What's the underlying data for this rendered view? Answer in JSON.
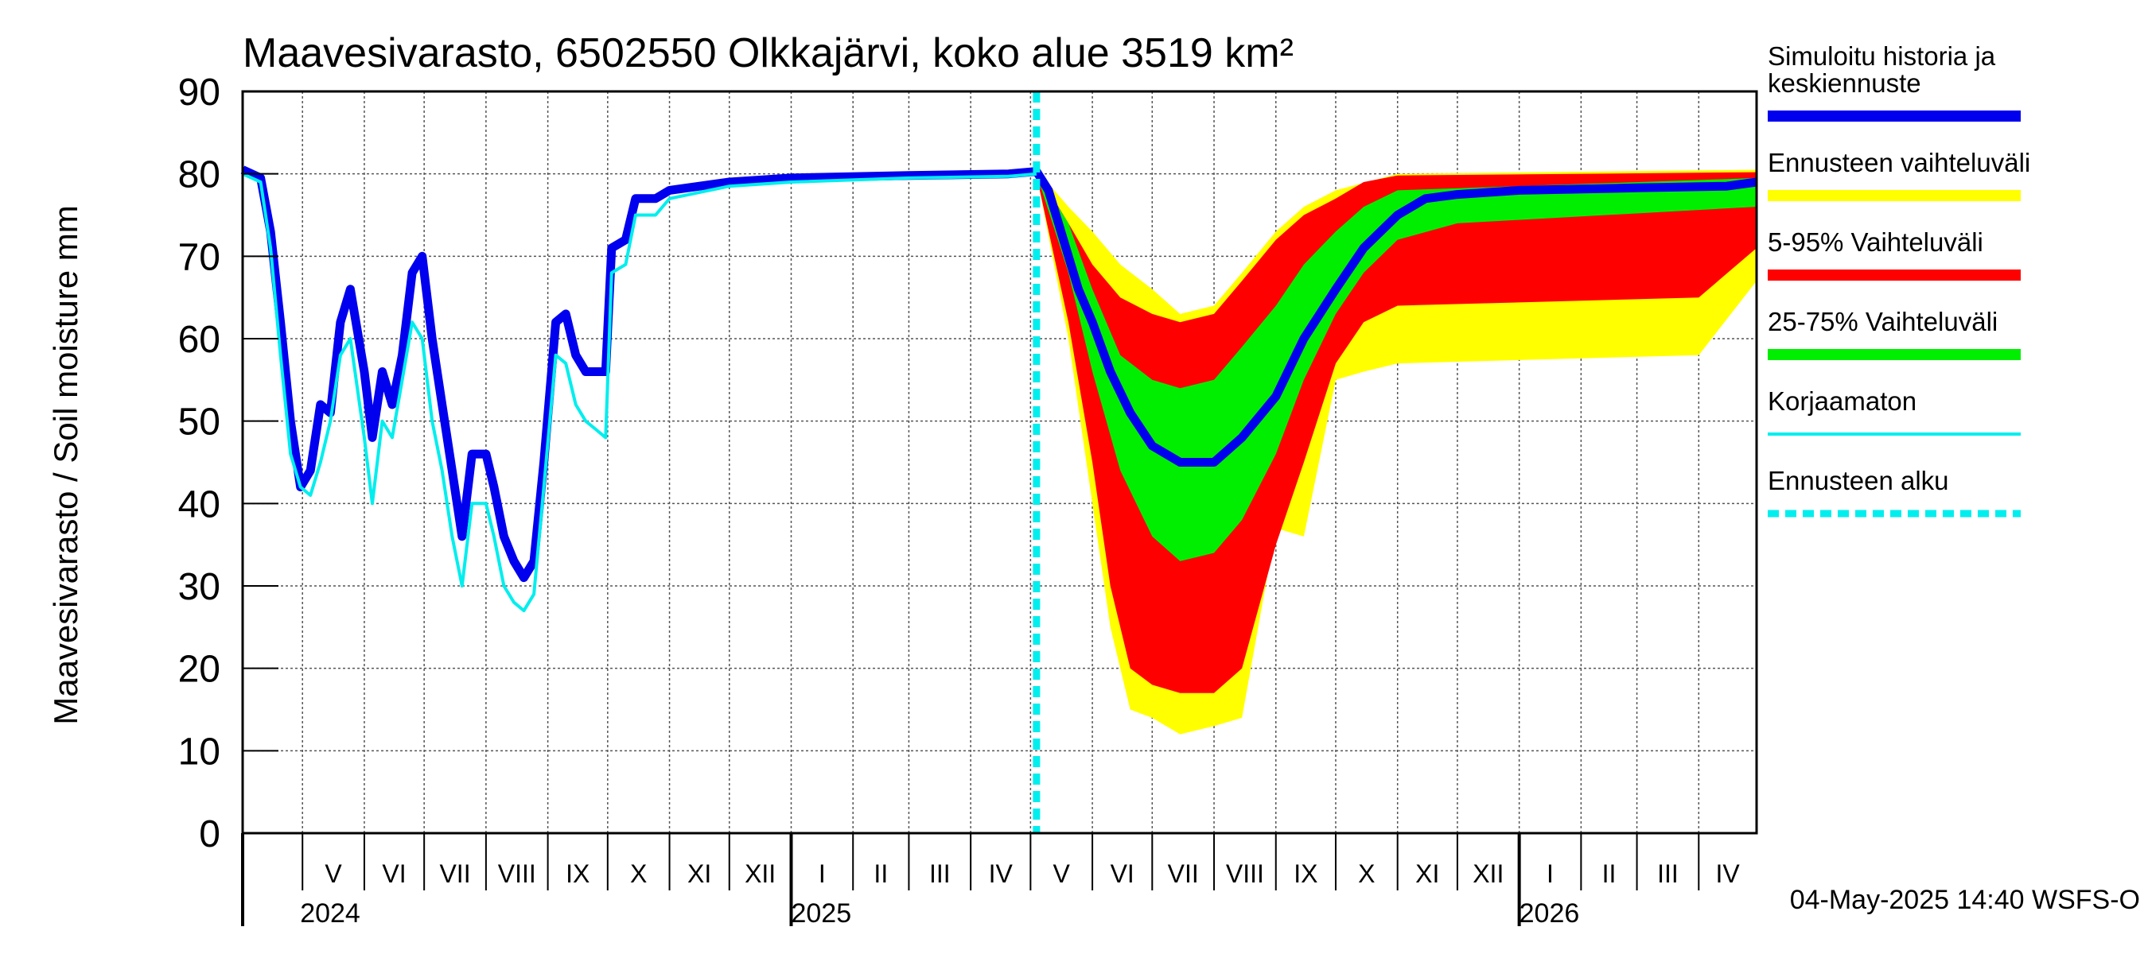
{
  "chart_data": {
    "type": "area",
    "title": "Maavesivarasto, 6502550 Olkkajärvi, koko alue 3519 km²",
    "ylabel": "Maavesivarasto / Soil moisture   mm",
    "ylim": [
      0,
      90
    ],
    "yticks": [
      0,
      10,
      20,
      30,
      40,
      50,
      60,
      70,
      80,
      90
    ],
    "grid": true,
    "legend_position": "right",
    "footer": "04-May-2025 14:40 WSFS-O",
    "x_range": [
      "2024-04-01",
      "2026-04-30"
    ],
    "forecast_start": "2025-05-04",
    "month_labels": [
      {
        "label": "V",
        "date": "2024-05-01"
      },
      {
        "label": "VI",
        "date": "2024-06-01"
      },
      {
        "label": "VII",
        "date": "2024-07-01"
      },
      {
        "label": "VIII",
        "date": "2024-08-01"
      },
      {
        "label": "IX",
        "date": "2024-09-01"
      },
      {
        "label": "X",
        "date": "2024-10-01"
      },
      {
        "label": "XI",
        "date": "2024-11-01"
      },
      {
        "label": "XII",
        "date": "2024-12-01"
      },
      {
        "label": "I",
        "date": "2025-01-01"
      },
      {
        "label": "II",
        "date": "2025-02-01"
      },
      {
        "label": "III",
        "date": "2025-03-01"
      },
      {
        "label": "IV",
        "date": "2025-04-01"
      },
      {
        "label": "V",
        "date": "2025-05-01"
      },
      {
        "label": "VI",
        "date": "2025-06-01"
      },
      {
        "label": "VII",
        "date": "2025-07-01"
      },
      {
        "label": "VIII",
        "date": "2025-08-01"
      },
      {
        "label": "IX",
        "date": "2025-09-01"
      },
      {
        "label": "X",
        "date": "2025-10-01"
      },
      {
        "label": "XI",
        "date": "2025-11-01"
      },
      {
        "label": "XII",
        "date": "2025-12-01"
      },
      {
        "label": "I",
        "date": "2026-01-01"
      },
      {
        "label": "II",
        "date": "2026-02-01"
      },
      {
        "label": "III",
        "date": "2026-03-01"
      },
      {
        "label": "IV",
        "date": "2026-04-01"
      }
    ],
    "year_labels": [
      {
        "label": "2024",
        "date": "2024-05-01"
      },
      {
        "label": "2025",
        "date": "2025-01-01"
      },
      {
        "label": "2026",
        "date": "2026-01-01"
      }
    ],
    "legend": [
      {
        "label": "Simuloitu historia ja keskiennuste",
        "color": "#0000ee",
        "style": "thick"
      },
      {
        "label": "Ennusteen vaihteluväli",
        "color": "#ffff00",
        "style": "thick"
      },
      {
        "label": "5-95% Vaihteluväli",
        "color": "#ff0000",
        "style": "thick"
      },
      {
        "label": "25-75% Vaihteluväli",
        "color": "#00ee00",
        "style": "thick"
      },
      {
        "label": "Korjaamaton",
        "color": "#00eeee",
        "style": "thin"
      },
      {
        "label": "Ennusteen alku",
        "color": "#00eeee",
        "style": "dashed"
      }
    ],
    "series": [
      {
        "name": "Simuloitu historia ja keskiennuste",
        "color": "#0000ee",
        "points": [
          [
            "2024-04-01",
            80.5
          ],
          [
            "2024-04-10",
            79.5
          ],
          [
            "2024-04-15",
            73
          ],
          [
            "2024-04-20",
            62
          ],
          [
            "2024-04-25",
            50
          ],
          [
            "2024-04-30",
            42
          ],
          [
            "2024-05-05",
            44
          ],
          [
            "2024-05-10",
            52
          ],
          [
            "2024-05-15",
            51
          ],
          [
            "2024-05-20",
            62
          ],
          [
            "2024-05-25",
            66
          ],
          [
            "2024-06-01",
            56
          ],
          [
            "2024-06-05",
            48
          ],
          [
            "2024-06-10",
            56
          ],
          [
            "2024-06-15",
            52
          ],
          [
            "2024-06-20",
            58
          ],
          [
            "2024-06-25",
            68
          ],
          [
            "2024-06-30",
            70
          ],
          [
            "2024-07-05",
            60
          ],
          [
            "2024-07-10",
            52
          ],
          [
            "2024-07-15",
            44
          ],
          [
            "2024-07-20",
            36
          ],
          [
            "2024-07-25",
            46
          ],
          [
            "2024-08-01",
            46
          ],
          [
            "2024-08-05",
            42
          ],
          [
            "2024-08-10",
            36
          ],
          [
            "2024-08-15",
            33
          ],
          [
            "2024-08-20",
            31
          ],
          [
            "2024-08-25",
            33
          ],
          [
            "2024-08-30",
            45
          ],
          [
            "2024-09-05",
            62
          ],
          [
            "2024-09-10",
            63
          ],
          [
            "2024-09-15",
            58
          ],
          [
            "2024-09-20",
            56
          ],
          [
            "2024-09-25",
            56
          ],
          [
            "2024-09-30",
            56
          ],
          [
            "2024-10-03",
            71
          ],
          [
            "2024-10-10",
            72
          ],
          [
            "2024-10-15",
            77
          ],
          [
            "2024-10-25",
            77
          ],
          [
            "2024-11-01",
            78
          ],
          [
            "2024-12-01",
            79
          ],
          [
            "2025-01-01",
            79.5
          ],
          [
            "2025-03-01",
            79.8
          ],
          [
            "2025-04-20",
            80
          ],
          [
            "2025-05-04",
            80.3
          ],
          [
            "2025-05-10",
            78
          ],
          [
            "2025-05-15",
            74
          ],
          [
            "2025-05-20",
            70
          ],
          [
            "2025-05-25",
            66
          ],
          [
            "2025-06-01",
            62
          ],
          [
            "2025-06-10",
            56
          ],
          [
            "2025-06-20",
            51
          ],
          [
            "2025-07-01",
            47
          ],
          [
            "2025-07-15",
            45
          ],
          [
            "2025-08-01",
            45
          ],
          [
            "2025-08-15",
            48
          ],
          [
            "2025-09-01",
            53
          ],
          [
            "2025-09-15",
            60
          ],
          [
            "2025-10-01",
            66
          ],
          [
            "2025-10-15",
            71
          ],
          [
            "2025-11-01",
            75
          ],
          [
            "2025-11-15",
            77
          ],
          [
            "2025-12-01",
            77.5
          ],
          [
            "2026-01-01",
            78
          ],
          [
            "2026-03-01",
            78.3
          ],
          [
            "2026-04-15",
            78.5
          ],
          [
            "2026-04-30",
            79
          ]
        ]
      },
      {
        "name": "Korjaamaton",
        "color": "#00eeee",
        "points": [
          [
            "2024-04-01",
            80
          ],
          [
            "2024-04-10",
            79
          ],
          [
            "2024-04-15",
            71
          ],
          [
            "2024-04-20",
            58
          ],
          [
            "2024-04-25",
            46
          ],
          [
            "2024-04-30",
            42
          ],
          [
            "2024-05-05",
            41
          ],
          [
            "2024-05-10",
            45
          ],
          [
            "2024-05-15",
            50
          ],
          [
            "2024-05-20",
            58
          ],
          [
            "2024-05-25",
            60
          ],
          [
            "2024-06-01",
            48
          ],
          [
            "2024-06-05",
            40
          ],
          [
            "2024-06-10",
            50
          ],
          [
            "2024-06-15",
            48
          ],
          [
            "2024-06-20",
            55
          ],
          [
            "2024-06-25",
            62
          ],
          [
            "2024-06-30",
            60
          ],
          [
            "2024-07-05",
            50
          ],
          [
            "2024-07-10",
            44
          ],
          [
            "2024-07-15",
            36
          ],
          [
            "2024-07-20",
            30
          ],
          [
            "2024-07-25",
            40
          ],
          [
            "2024-08-01",
            40
          ],
          [
            "2024-08-05",
            36
          ],
          [
            "2024-08-10",
            30
          ],
          [
            "2024-08-15",
            28
          ],
          [
            "2024-08-20",
            27
          ],
          [
            "2024-08-25",
            29
          ],
          [
            "2024-08-30",
            42
          ],
          [
            "2024-09-05",
            58
          ],
          [
            "2024-09-10",
            57
          ],
          [
            "2024-09-15",
            52
          ],
          [
            "2024-09-20",
            50
          ],
          [
            "2024-09-25",
            49
          ],
          [
            "2024-09-30",
            48
          ],
          [
            "2024-10-03",
            68
          ],
          [
            "2024-10-10",
            69
          ],
          [
            "2024-10-15",
            75
          ],
          [
            "2024-10-25",
            75
          ],
          [
            "2024-11-01",
            77
          ],
          [
            "2024-12-01",
            78.5
          ],
          [
            "2025-01-01",
            79
          ],
          [
            "2025-03-01",
            79.5
          ],
          [
            "2025-04-20",
            79.7
          ],
          [
            "2025-05-04",
            80
          ]
        ]
      }
    ],
    "bands": [
      {
        "name": "Ennusteen vaihteluväli",
        "color": "#ffff00",
        "upper": [
          [
            "2025-05-04",
            80.5
          ],
          [
            "2025-05-20",
            76
          ],
          [
            "2025-06-01",
            73
          ],
          [
            "2025-06-15",
            69
          ],
          [
            "2025-07-01",
            66
          ],
          [
            "2025-07-15",
            63
          ],
          [
            "2025-08-01",
            64
          ],
          [
            "2025-08-15",
            68
          ],
          [
            "2025-09-01",
            73
          ],
          [
            "2025-09-15",
            76
          ],
          [
            "2025-10-01",
            78
          ],
          [
            "2025-11-01",
            80
          ],
          [
            "2026-04-30",
            80.5
          ]
        ],
        "lower": [
          [
            "2025-05-04",
            80
          ],
          [
            "2025-05-20",
            60
          ],
          [
            "2025-06-01",
            40
          ],
          [
            "2025-06-10",
            25
          ],
          [
            "2025-06-20",
            15
          ],
          [
            "2025-07-01",
            14
          ],
          [
            "2025-07-15",
            12
          ],
          [
            "2025-08-01",
            13
          ],
          [
            "2025-08-15",
            14
          ],
          [
            "2025-09-01",
            37
          ],
          [
            "2025-09-15",
            36
          ],
          [
            "2025-10-01",
            55
          ],
          [
            "2025-10-15",
            56
          ],
          [
            "2025-11-01",
            57
          ],
          [
            "2026-04-01",
            58
          ],
          [
            "2026-04-30",
            67
          ]
        ]
      },
      {
        "name": "5-95% Vaihteluväli",
        "color": "#ff0000",
        "upper": [
          [
            "2025-05-04",
            80.4
          ],
          [
            "2025-05-20",
            74
          ],
          [
            "2025-06-01",
            69
          ],
          [
            "2025-06-15",
            65
          ],
          [
            "2025-07-01",
            63
          ],
          [
            "2025-07-15",
            62
          ],
          [
            "2025-08-01",
            63
          ],
          [
            "2025-08-15",
            67
          ],
          [
            "2025-09-01",
            72
          ],
          [
            "2025-09-15",
            75
          ],
          [
            "2025-10-01",
            77
          ],
          [
            "2025-10-15",
            79
          ],
          [
            "2025-11-01",
            79.8
          ],
          [
            "2026-04-30",
            80.2
          ]
        ],
        "lower": [
          [
            "2025-05-04",
            79.8
          ],
          [
            "2025-05-20",
            62
          ],
          [
            "2025-06-01",
            45
          ],
          [
            "2025-06-10",
            30
          ],
          [
            "2025-06-20",
            20
          ],
          [
            "2025-07-01",
            18
          ],
          [
            "2025-07-15",
            17
          ],
          [
            "2025-08-01",
            17
          ],
          [
            "2025-08-15",
            20
          ],
          [
            "2025-09-01",
            35
          ],
          [
            "2025-09-15",
            45
          ],
          [
            "2025-10-01",
            57
          ],
          [
            "2025-10-15",
            62
          ],
          [
            "2025-11-01",
            64
          ],
          [
            "2026-04-01",
            65
          ],
          [
            "2026-04-30",
            71
          ]
        ]
      },
      {
        "name": "25-75% Vaihteluväli",
        "color": "#00ee00",
        "upper": [
          [
            "2025-05-04",
            80.2
          ],
          [
            "2025-05-20",
            74
          ],
          [
            "2025-06-01",
            66
          ],
          [
            "2025-06-15",
            58
          ],
          [
            "2025-07-01",
            55
          ],
          [
            "2025-07-15",
            54
          ],
          [
            "2025-08-01",
            55
          ],
          [
            "2025-08-15",
            59
          ],
          [
            "2025-09-01",
            64
          ],
          [
            "2025-09-15",
            69
          ],
          [
            "2025-10-01",
            73
          ],
          [
            "2025-10-15",
            76
          ],
          [
            "2025-11-01",
            78
          ],
          [
            "2026-04-30",
            79.5
          ]
        ],
        "lower": [
          [
            "2025-05-04",
            80
          ],
          [
            "2025-05-20",
            68
          ],
          [
            "2025-06-01",
            56
          ],
          [
            "2025-06-15",
            44
          ],
          [
            "2025-07-01",
            36
          ],
          [
            "2025-07-15",
            33
          ],
          [
            "2025-08-01",
            34
          ],
          [
            "2025-08-15",
            38
          ],
          [
            "2025-09-01",
            46
          ],
          [
            "2025-09-15",
            55
          ],
          [
            "2025-10-01",
            63
          ],
          [
            "2025-10-15",
            68
          ],
          [
            "2025-11-01",
            72
          ],
          [
            "2025-12-01",
            74
          ],
          [
            "2026-04-30",
            76
          ]
        ]
      }
    ]
  }
}
